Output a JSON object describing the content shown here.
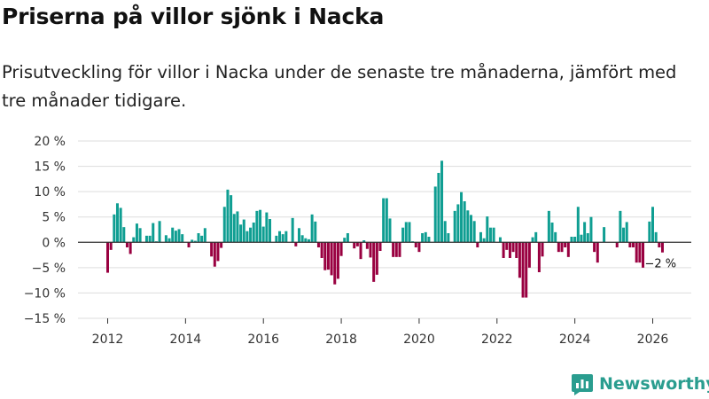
{
  "title": "Priserna på villor sjönk i Nacka",
  "subtitle": "Prisutveckling för villor i Nacka under de senaste tre månaderna, jämfört med tre månader tidigare.",
  "brand": "Newsworthy",
  "colors": {
    "positive": "#0f9e92",
    "negative": "#990040",
    "grid": "#dddddd",
    "zero": "#333333"
  },
  "chart_data": {
    "type": "bar",
    "title": "Priserna på villor sjönk i Nacka",
    "xlabel": "",
    "ylabel": "",
    "ylim": [
      -15,
      20
    ],
    "yticks": [
      -15,
      -10,
      -5,
      0,
      5,
      10,
      15,
      20
    ],
    "ytick_labels": [
      "−15 %",
      "−10 %",
      "−5 %",
      "0 %",
      "5 %",
      "10 %",
      "15 %",
      "20 %"
    ],
    "xticks": [
      2012,
      2014,
      2016,
      2018,
      2020,
      2022,
      2024,
      2026
    ],
    "xtick_labels": [
      "2012",
      "2014",
      "2016",
      "2018",
      "2020",
      "2022",
      "2024",
      "2026"
    ],
    "x_start": "2012-01",
    "unit": "%",
    "values": [
      -6,
      -1.5,
      5.5,
      7.7,
      6.8,
      3,
      -1,
      -2.3,
      1,
      3.7,
      2.8,
      0,
      1.3,
      1.3,
      3.8,
      0.2,
      4.2,
      0,
      1.4,
      0.8,
      2.9,
      2.3,
      2.6,
      1.6,
      0,
      -1,
      0.5,
      0.3,
      1.8,
      1.3,
      2.8,
      0,
      -2.8,
      -4.8,
      -3.7,
      -1.1,
      7,
      10.4,
      9.3,
      5.6,
      6.1,
      3.5,
      4.5,
      2.2,
      2.9,
      3.9,
      6.2,
      6.4,
      3.1,
      5.9,
      4.6,
      0,
      1.3,
      2.2,
      1.6,
      2.2,
      0,
      4.8,
      -0.8,
      2.8,
      1.4,
      0.8,
      0.6,
      5.5,
      4.1,
      -1,
      -3.1,
      -5.5,
      -5.4,
      -6.5,
      -8.3,
      -7.2,
      -2.7,
      0.9,
      1.8,
      0,
      -1.2,
      -0.8,
      -3.3,
      0.4,
      -1.3,
      -3,
      -7.8,
      -6.4,
      -1.7,
      8.7,
      8.7,
      4.7,
      -2.9,
      -2.9,
      -2.9,
      2.9,
      4,
      4,
      0.2,
      -1,
      -1.9,
      1.8,
      2,
      1.1,
      0,
      11,
      13.7,
      16.1,
      4.2,
      1.8,
      0,
      6.2,
      7.5,
      9.9,
      8.1,
      6.3,
      5.4,
      4.2,
      -1,
      2,
      0.8,
      5.1,
      2.9,
      2.9,
      0,
      1,
      -3.1,
      -1.5,
      -3.1,
      -1.9,
      -3.1,
      -7,
      -10.9,
      -10.9,
      -5,
      1,
      2,
      -5.9,
      -2.8,
      0,
      6.2,
      3.9,
      2,
      -1.9,
      -1.9,
      -1,
      -2.9,
      1.1,
      1.1,
      7,
      1.5,
      4,
      1.8,
      5,
      -1.9,
      -4,
      0,
      3,
      0,
      0,
      0,
      -1,
      6.2,
      2.9,
      4,
      -1,
      -1,
      -4,
      -4,
      -5,
      0,
      4.1,
      7,
      2,
      -1,
      -2
    ],
    "last_label": "−2 %"
  }
}
